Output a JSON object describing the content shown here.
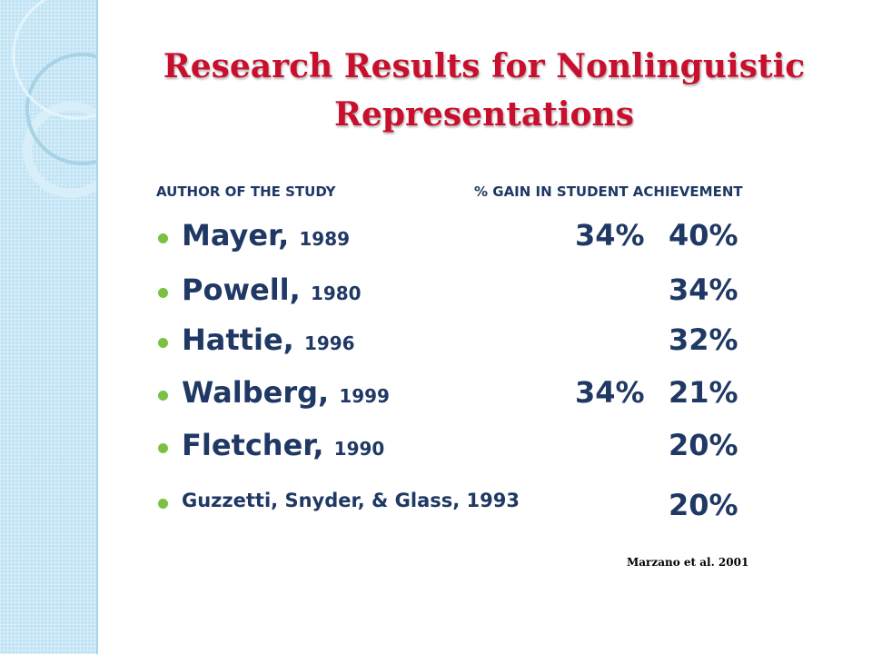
{
  "title": {
    "lines": [
      "Research Results for Nonlinguistic",
      "Representations"
    ]
  },
  "header": {
    "author": "AUTHOR OF THE STUDY",
    "gain": "% GAIN IN STUDENT ACHIEVEMENT"
  },
  "rows": [
    {
      "name": "Mayer,",
      "year": "1989",
      "gains": [
        "34%",
        "40%"
      ]
    },
    {
      "name": "Powell,",
      "year": "1980",
      "gains": [
        "34%"
      ]
    },
    {
      "name": "Hattie,",
      "year": "1996",
      "gains": [
        "32%"
      ]
    },
    {
      "name": "Walberg,",
      "year": "1999",
      "gains": [
        "34%",
        "21%"
      ]
    },
    {
      "name": "Fletcher,",
      "year": "1990",
      "gains": [
        "20%"
      ]
    },
    {
      "name": "Guzzetti, Snyder, & Glass, 1993",
      "gains": [
        "20%"
      ]
    }
  ],
  "citation": "Marzano et al. 2001"
}
